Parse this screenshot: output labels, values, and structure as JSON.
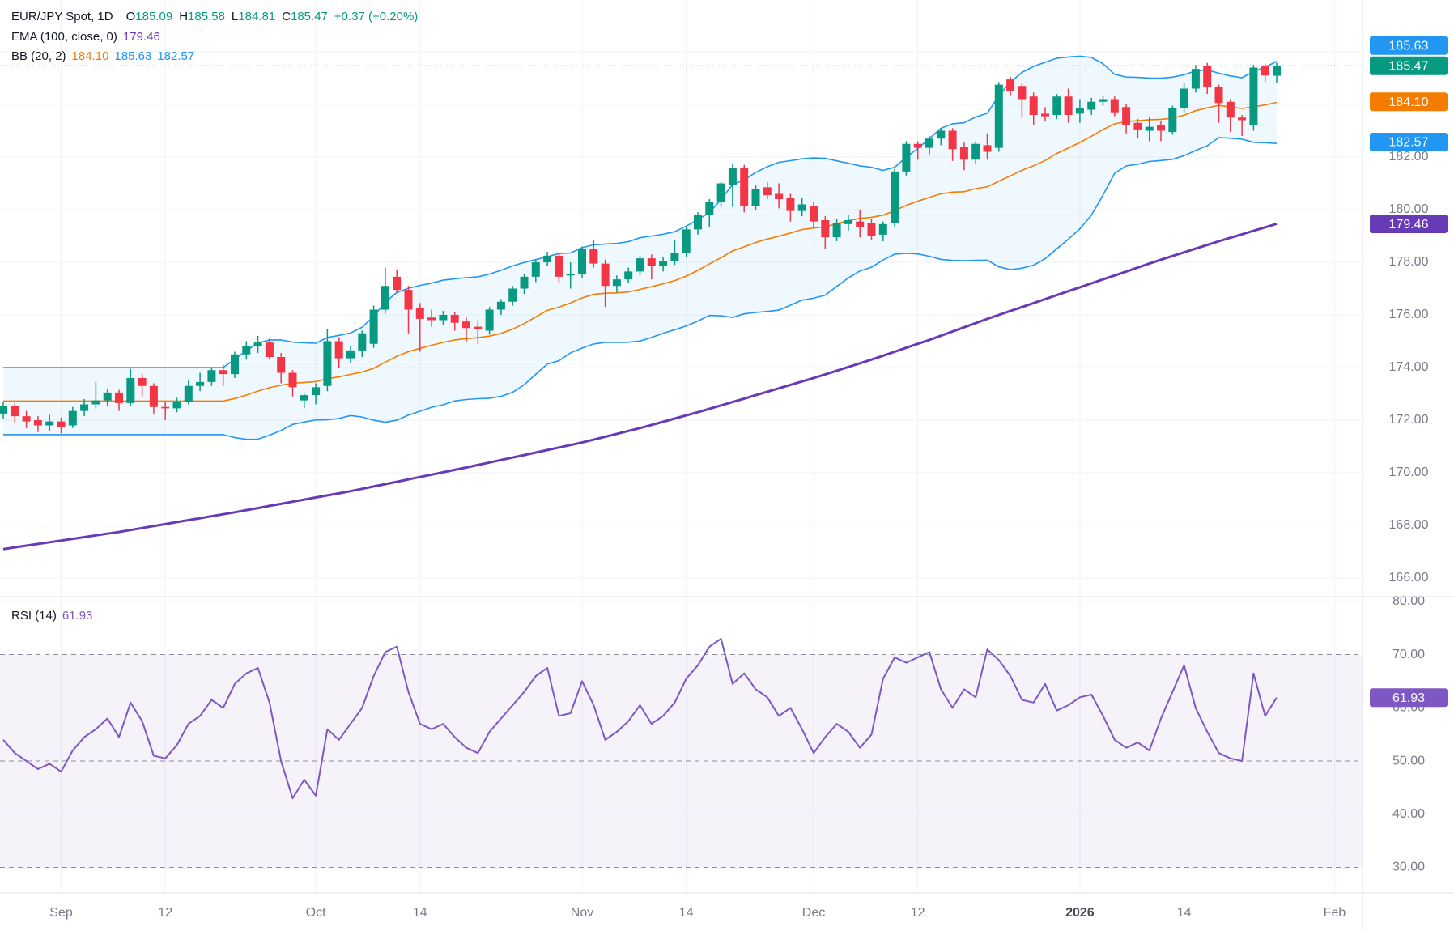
{
  "header": {
    "symbol": "EUR/JPY Spot, 1D",
    "o_label": "O",
    "o_value": "185.09",
    "h_label": "H",
    "h_value": "185.58",
    "l_label": "L",
    "l_value": "184.81",
    "c_label": "C",
    "c_value": "185.47",
    "change": "+0.37 (+0.20%)",
    "ema_label": "EMA (100, close, 0)",
    "ema_value": "179.46",
    "bb_label": "BB (20, 2)",
    "bb_basis": "184.10",
    "bb_upper": "185.63",
    "bb_lower": "182.57",
    "rsi_label": "RSI (14)",
    "rsi_value": "61.93"
  },
  "colors": {
    "up": "#089981",
    "down": "#f23645",
    "bb": "#2196f3",
    "bb_fill": "rgba(33,150,243,0.07)",
    "basis": "#f57c00",
    "ema": "#673ab7",
    "rsi": "#7e57c2",
    "rsi_fill": "rgba(126,87,194,0.08)",
    "grid": "#f0f3fa",
    "separator": "#e0e3eb",
    "axis_text": "#787b86",
    "year_text": "#434651",
    "text": "#131722",
    "close_line": "#089981",
    "dash": "#8a8e99"
  },
  "axis": {
    "price_labeled_ticks": [
      182,
      180,
      178,
      176,
      174,
      172,
      170,
      168,
      166
    ],
    "price_grid_ticks": [
      186,
      184,
      182,
      180,
      178,
      176,
      174,
      172,
      170,
      168,
      166
    ],
    "rsi_solid_ticks": [
      80,
      60,
      40
    ],
    "rsi_dashed_ticks": [
      70,
      50,
      30
    ],
    "rsi_labeled_ticks": [
      80,
      70,
      60,
      50,
      40,
      30
    ],
    "rsi_band": [
      30,
      70
    ],
    "time_ticks": [
      {
        "label": "Sep",
        "bar": 5,
        "bold": false
      },
      {
        "label": "12",
        "bar": 14,
        "bold": false
      },
      {
        "label": "Oct",
        "bar": 27,
        "bold": false
      },
      {
        "label": "14",
        "bar": 36,
        "bold": false
      },
      {
        "label": "Nov",
        "bar": 50,
        "bold": false
      },
      {
        "label": "14",
        "bar": 59,
        "bold": false
      },
      {
        "label": "Dec",
        "bar": 70,
        "bold": false
      },
      {
        "label": "12",
        "bar": 79,
        "bold": false
      },
      {
        "label": "2026",
        "bar": 93,
        "bold": true
      },
      {
        "label": "14",
        "bar": 102,
        "bold": false
      },
      {
        "label": "Feb",
        "bar": 115,
        "bold": false
      }
    ],
    "price_badges": [
      {
        "value": 185.63,
        "text": "185.63",
        "color_key": "bb"
      },
      {
        "value": 185.47,
        "text": "185.47",
        "color_key": "up"
      },
      {
        "value": 184.1,
        "text": "184.10",
        "color_key": "basis"
      },
      {
        "value": 182.57,
        "text": "182.57",
        "color_key": "bb"
      },
      {
        "value": 179.46,
        "text": "179.46",
        "color_key": "ema"
      }
    ],
    "rsi_badge": {
      "value": 61.93,
      "text": "61.93",
      "color_key": "rsi"
    }
  },
  "chart_data": {
    "type": "candlestick",
    "title": "EUR/JPY Spot, 1D",
    "last_close": 185.47,
    "indicators": {
      "ema": "EMA(100, close, 0)",
      "bb": "BB(20, 2)",
      "rsi": "RSI(14)"
    },
    "bb_period": 20,
    "bb_mult": 2,
    "price_axis_range_note": "y gridlines every 2.00 from 166.00 to 186.00",
    "candles_ohlc_columns": [
      "open",
      "high",
      "low",
      "close"
    ],
    "candles_ohlc": [
      [
        172.25,
        172.7,
        172.05,
        172.55
      ],
      [
        172.55,
        172.65,
        171.9,
        172.15
      ],
      [
        172.15,
        172.35,
        171.7,
        171.95
      ],
      [
        172.0,
        172.15,
        171.55,
        171.8
      ],
      [
        171.8,
        172.2,
        171.6,
        171.95
      ],
      [
        171.95,
        172.1,
        171.5,
        171.75
      ],
      [
        171.8,
        172.5,
        171.7,
        172.35
      ],
      [
        172.35,
        172.8,
        172.15,
        172.6
      ],
      [
        172.6,
        173.45,
        172.45,
        172.75
      ],
      [
        172.75,
        173.2,
        172.55,
        173.05
      ],
      [
        173.05,
        173.15,
        172.35,
        172.65
      ],
      [
        172.65,
        173.95,
        172.55,
        173.6
      ],
      [
        173.6,
        173.75,
        172.9,
        173.3
      ],
      [
        173.3,
        173.4,
        172.25,
        172.5
      ],
      [
        172.5,
        172.7,
        172.0,
        172.45
      ],
      [
        172.45,
        172.85,
        172.3,
        172.7
      ],
      [
        172.7,
        173.5,
        172.6,
        173.3
      ],
      [
        173.3,
        173.8,
        173.1,
        173.45
      ],
      [
        173.45,
        174.0,
        173.3,
        173.9
      ],
      [
        173.9,
        174.1,
        173.3,
        173.75
      ],
      [
        173.75,
        174.6,
        173.6,
        174.5
      ],
      [
        174.5,
        175.0,
        174.3,
        174.8
      ],
      [
        174.8,
        175.2,
        174.55,
        174.95
      ],
      [
        174.95,
        175.1,
        174.3,
        174.4
      ],
      [
        174.4,
        174.55,
        173.4,
        173.8
      ],
      [
        173.8,
        173.9,
        172.9,
        173.25
      ],
      [
        172.75,
        173.0,
        172.45,
        172.95
      ],
      [
        172.95,
        173.4,
        172.6,
        173.25
      ],
      [
        173.3,
        175.45,
        173.1,
        175.0
      ],
      [
        175.0,
        175.15,
        174.0,
        174.35
      ],
      [
        174.35,
        174.8,
        174.15,
        174.65
      ],
      [
        174.65,
        175.4,
        174.4,
        175.3
      ],
      [
        174.9,
        176.35,
        174.75,
        176.2
      ],
      [
        176.2,
        177.8,
        176.05,
        177.1
      ],
      [
        177.45,
        177.7,
        176.85,
        176.95
      ],
      [
        176.95,
        177.1,
        175.3,
        176.2
      ],
      [
        176.25,
        176.45,
        174.6,
        175.85
      ],
      [
        175.9,
        176.2,
        175.55,
        175.8
      ],
      [
        175.8,
        176.15,
        175.6,
        176.0
      ],
      [
        176.0,
        176.1,
        175.4,
        175.7
      ],
      [
        175.75,
        175.9,
        174.95,
        175.5
      ],
      [
        175.55,
        175.8,
        174.9,
        175.45
      ],
      [
        175.4,
        176.3,
        175.25,
        176.2
      ],
      [
        176.2,
        176.6,
        176.0,
        176.5
      ],
      [
        176.5,
        177.1,
        176.35,
        177.0
      ],
      [
        177.0,
        177.55,
        176.8,
        177.45
      ],
      [
        177.45,
        178.1,
        177.25,
        178.0
      ],
      [
        178.0,
        178.4,
        177.85,
        178.25
      ],
      [
        178.25,
        178.35,
        177.2,
        177.45
      ],
      [
        177.5,
        178.0,
        177.0,
        177.55
      ],
      [
        177.55,
        178.6,
        177.4,
        178.5
      ],
      [
        178.5,
        178.85,
        177.8,
        177.95
      ],
      [
        177.95,
        178.1,
        176.3,
        177.1
      ],
      [
        177.1,
        177.5,
        176.85,
        177.35
      ],
      [
        177.35,
        177.8,
        177.2,
        177.65
      ],
      [
        177.65,
        178.25,
        177.5,
        178.15
      ],
      [
        178.15,
        178.3,
        177.35,
        177.85
      ],
      [
        177.85,
        178.2,
        177.65,
        178.05
      ],
      [
        178.05,
        178.85,
        177.9,
        178.35
      ],
      [
        178.35,
        179.35,
        178.2,
        179.25
      ],
      [
        179.25,
        179.9,
        179.05,
        179.8
      ],
      [
        179.8,
        180.4,
        179.35,
        180.3
      ],
      [
        180.3,
        181.05,
        180.1,
        181.0
      ],
      [
        180.95,
        181.75,
        180.1,
        181.6
      ],
      [
        181.6,
        181.7,
        179.9,
        180.15
      ],
      [
        180.15,
        180.95,
        180.0,
        180.8
      ],
      [
        180.85,
        181.05,
        180.4,
        180.55
      ],
      [
        180.6,
        181.0,
        180.05,
        180.4
      ],
      [
        180.45,
        180.6,
        179.55,
        179.95
      ],
      [
        179.95,
        180.45,
        179.75,
        180.2
      ],
      [
        180.15,
        180.3,
        179.3,
        179.55
      ],
      [
        179.6,
        179.75,
        178.5,
        178.95
      ],
      [
        178.95,
        179.65,
        178.8,
        179.5
      ],
      [
        179.45,
        179.8,
        179.2,
        179.6
      ],
      [
        179.55,
        180.0,
        178.95,
        179.35
      ],
      [
        179.5,
        179.65,
        178.85,
        179.0
      ],
      [
        179.05,
        179.55,
        178.8,
        179.45
      ],
      [
        179.5,
        181.55,
        179.35,
        181.45
      ],
      [
        181.45,
        182.6,
        181.3,
        182.5
      ],
      [
        182.5,
        182.6,
        181.9,
        182.35
      ],
      [
        182.35,
        182.8,
        182.1,
        182.7
      ],
      [
        182.7,
        183.1,
        182.45,
        183.0
      ],
      [
        183.0,
        183.1,
        181.85,
        182.3
      ],
      [
        182.4,
        182.55,
        181.5,
        181.9
      ],
      [
        181.9,
        182.6,
        181.75,
        182.5
      ],
      [
        182.45,
        182.9,
        181.9,
        182.2
      ],
      [
        182.35,
        184.85,
        182.2,
        184.75
      ],
      [
        184.95,
        185.05,
        184.35,
        184.5
      ],
      [
        184.7,
        184.8,
        183.5,
        184.2
      ],
      [
        184.3,
        184.45,
        183.2,
        183.6
      ],
      [
        183.65,
        183.9,
        183.35,
        183.55
      ],
      [
        183.6,
        184.4,
        183.45,
        184.3
      ],
      [
        184.3,
        184.6,
        183.3,
        183.6
      ],
      [
        183.65,
        184.2,
        183.3,
        183.85
      ],
      [
        183.8,
        184.25,
        183.6,
        184.1
      ],
      [
        184.1,
        184.35,
        183.95,
        184.2
      ],
      [
        184.2,
        184.3,
        183.55,
        183.7
      ],
      [
        183.9,
        184.0,
        182.9,
        183.2
      ],
      [
        183.3,
        183.45,
        182.7,
        183.05
      ],
      [
        183.0,
        183.5,
        182.6,
        183.15
      ],
      [
        183.2,
        183.35,
        182.6,
        183.0
      ],
      [
        182.95,
        183.95,
        182.85,
        183.85
      ],
      [
        183.85,
        184.8,
        183.7,
        184.6
      ],
      [
        184.6,
        185.5,
        184.45,
        185.35
      ],
      [
        185.45,
        185.58,
        184.4,
        184.65
      ],
      [
        184.65,
        184.75,
        183.3,
        184.05
      ],
      [
        184.1,
        184.2,
        182.95,
        183.5
      ],
      [
        183.5,
        183.6,
        182.8,
        183.4
      ],
      [
        183.2,
        185.5,
        183.0,
        185.4
      ],
      [
        185.45,
        185.55,
        184.85,
        185.1
      ],
      [
        185.09,
        185.58,
        184.81,
        185.47
      ]
    ],
    "rsi_values": [
      54,
      51.5,
      50,
      48.5,
      49.5,
      48,
      52,
      54.5,
      56,
      58,
      54.5,
      61,
      57.5,
      51,
      50.5,
      53,
      57,
      58.5,
      61.5,
      60,
      64.5,
      66.5,
      67.5,
      61,
      50,
      43,
      46.5,
      43.5,
      56,
      54,
      57,
      60,
      66,
      70.5,
      71.5,
      63,
      57,
      56,
      57,
      54.5,
      52.5,
      51.5,
      55.5,
      58,
      60.5,
      63,
      66,
      67.5,
      58.5,
      59,
      65,
      60.5,
      54,
      55.5,
      57.5,
      60.5,
      57,
      58.5,
      61,
      65.5,
      68,
      71.5,
      73,
      64.5,
      66.5,
      63.5,
      62,
      58.5,
      60,
      56,
      51.5,
      54.5,
      57,
      55.5,
      52.5,
      55,
      65.5,
      69.5,
      68.5,
      69.5,
      70.5,
      63.5,
      60,
      63.5,
      62,
      71,
      69,
      66,
      61.5,
      61,
      64.5,
      59.5,
      60.5,
      62,
      62.5,
      58.5,
      54,
      52.5,
      53.5,
      52,
      58,
      63,
      68,
      60,
      55.5,
      51.5,
      50.5,
      50,
      66.5,
      58.5,
      61.93
    ],
    "ema_anchor_points": [
      [
        0,
        167.1
      ],
      [
        10,
        167.75
      ],
      [
        20,
        168.5
      ],
      [
        30,
        169.3
      ],
      [
        40,
        170.2
      ],
      [
        50,
        171.15
      ],
      [
        55,
        171.7
      ],
      [
        60,
        172.3
      ],
      [
        65,
        172.95
      ],
      [
        70,
        173.6
      ],
      [
        75,
        174.3
      ],
      [
        80,
        175.05
      ],
      [
        85,
        175.85
      ],
      [
        90,
        176.6
      ],
      [
        95,
        177.35
      ],
      [
        100,
        178.1
      ],
      [
        105,
        178.8
      ],
      [
        110,
        179.46
      ]
    ]
  }
}
